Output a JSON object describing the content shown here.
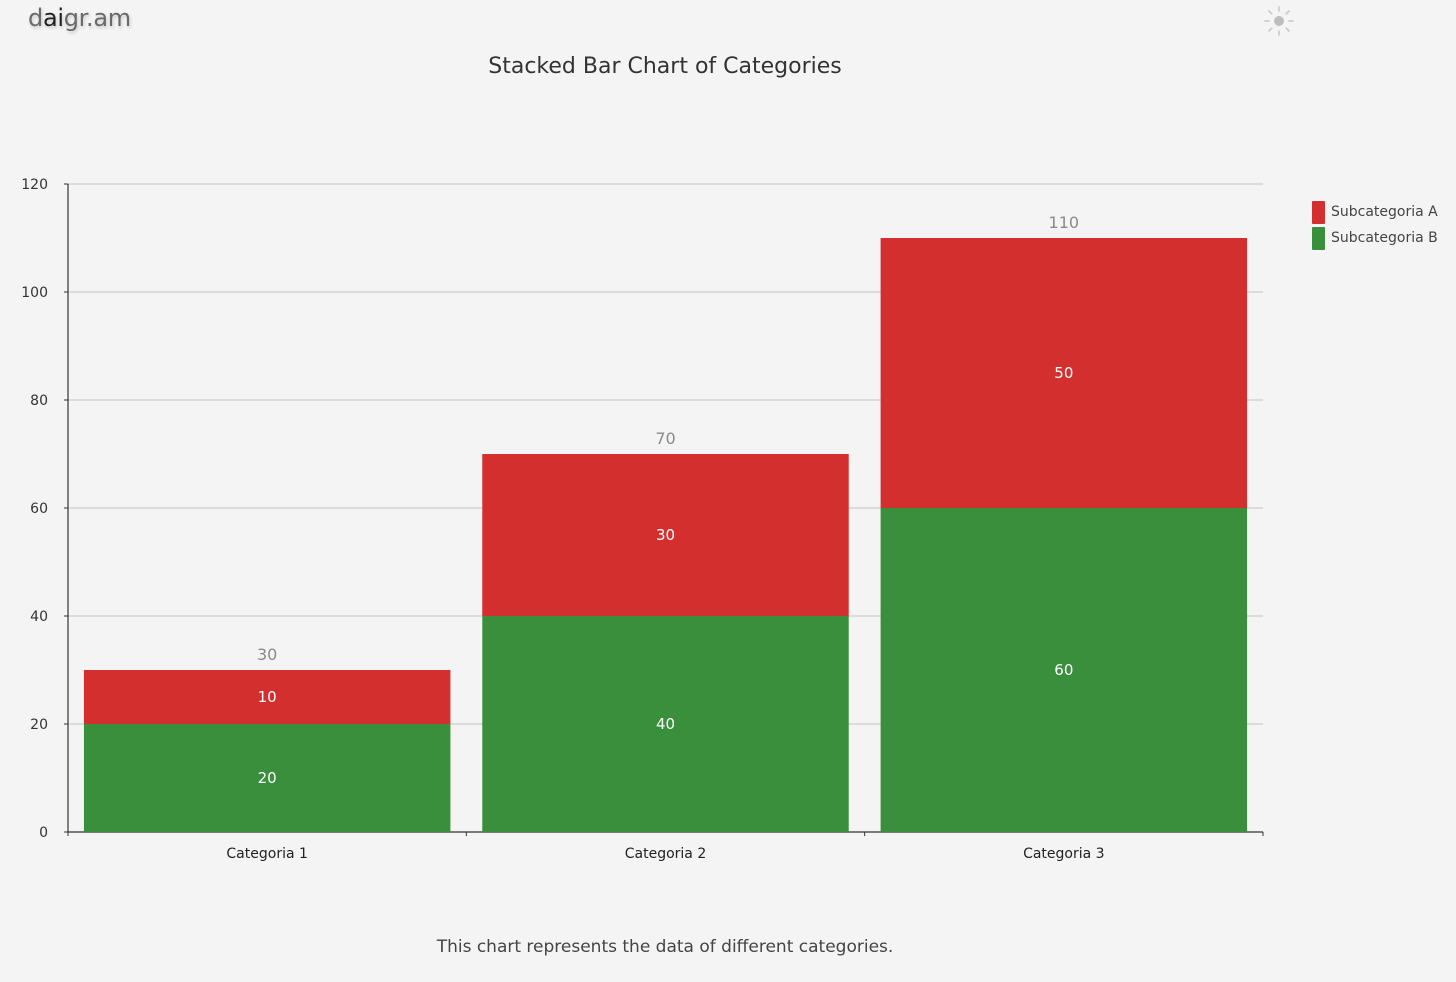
{
  "brand": {
    "prefix": "d",
    "highlight": "ai",
    "suffix": "gr.am"
  },
  "theme_toggle": {
    "icon": "sun-icon"
  },
  "caption": "This chart represents the data of different categories.",
  "colors": {
    "subcategoria_a": "#d42f2f",
    "subcategoria_b": "#3a8f3d"
  },
  "chart_data": {
    "type": "bar",
    "stacked": true,
    "title": "Stacked Bar Chart of Categories",
    "xlabel": "",
    "ylabel": "",
    "categories": [
      "Categoria 1",
      "Categoria 2",
      "Categoria 3"
    ],
    "series": [
      {
        "name": "Subcategoria B",
        "values": [
          20,
          40,
          60
        ],
        "color": "#3a8f3d"
      },
      {
        "name": "Subcategoria A",
        "values": [
          10,
          30,
          50
        ],
        "color": "#d42f2f"
      }
    ],
    "totals": [
      30,
      70,
      110
    ],
    "ylim": [
      0,
      120
    ],
    "yticks": [
      0,
      20,
      40,
      60,
      80,
      100,
      120
    ],
    "grid": true,
    "legend_position": "top-right",
    "legend": [
      {
        "name": "Subcategoria A",
        "color": "#d42f2f"
      },
      {
        "name": "Subcategoria B",
        "color": "#3a8f3d"
      }
    ]
  }
}
